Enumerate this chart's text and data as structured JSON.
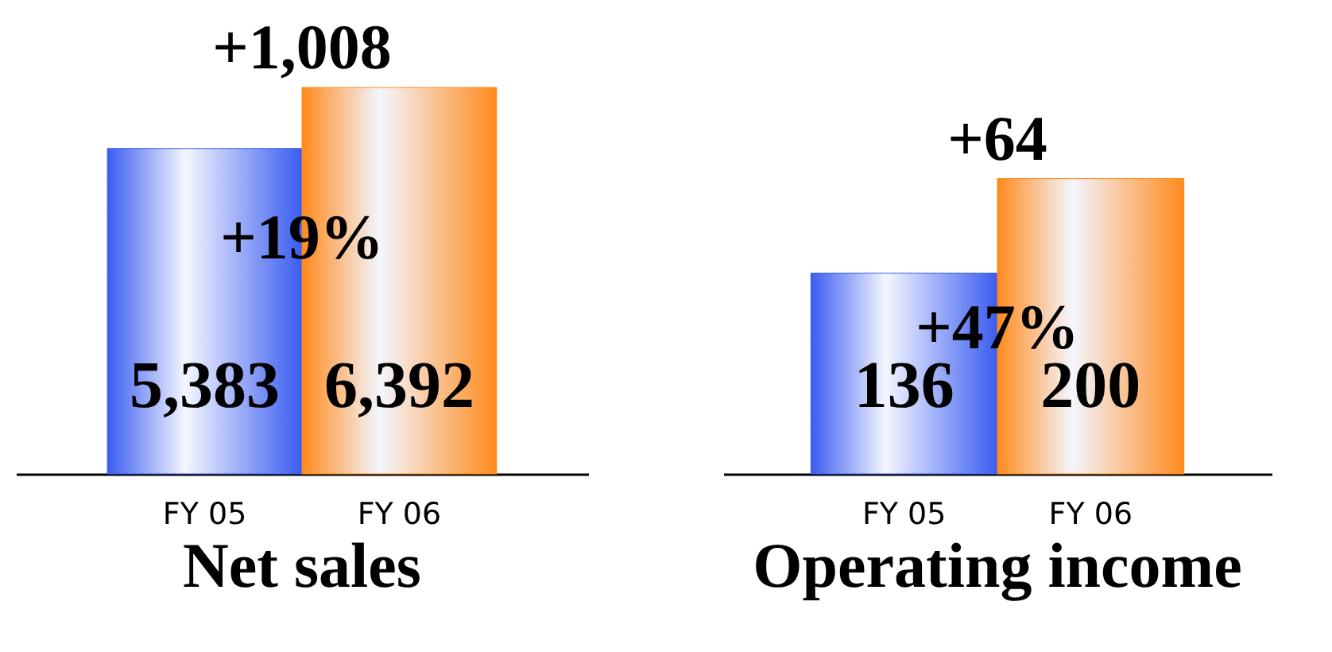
{
  "chart_data": [
    {
      "type": "bar",
      "title": "Net sales",
      "categories": [
        "FY 05",
        "FY 06"
      ],
      "values": [
        5383,
        6392
      ],
      "value_labels": [
        "5,383",
        "6,392"
      ],
      "colors": [
        "#3a5cf0",
        "#ff8a1c"
      ],
      "annotations": [
        "+1,008",
        "+19%"
      ]
    },
    {
      "type": "bar",
      "title": "Operating income",
      "categories": [
        "FY 05",
        "FY 06"
      ],
      "values": [
        136,
        200
      ],
      "colors": [
        "#3a5cf0",
        "#ff8a1c"
      ],
      "data_labels": true,
      "annotations": [
        "+64",
        "+47%"
      ]
    }
  ]
}
